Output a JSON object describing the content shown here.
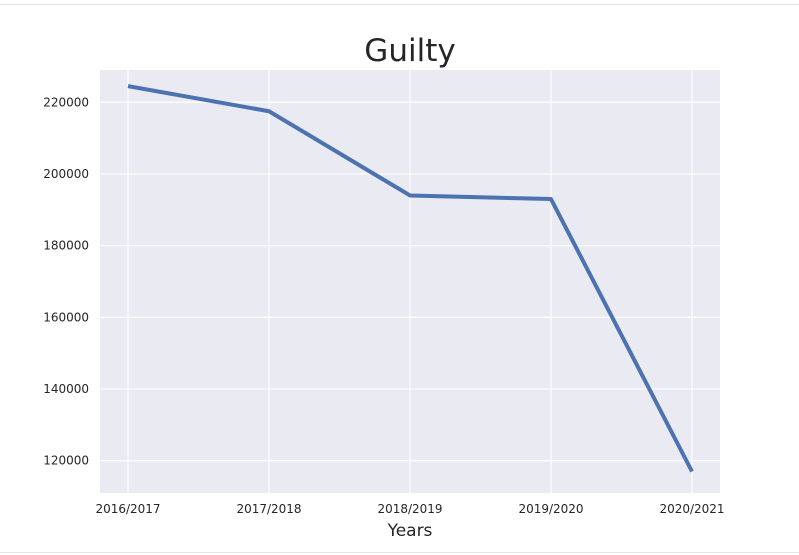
{
  "chart_data": {
    "type": "line",
    "title": "Guilty",
    "xlabel": "Years",
    "ylabel": "",
    "categories": [
      "2016/2017",
      "2017/2018",
      "2018/2019",
      "2019/2020",
      "2020/2021"
    ],
    "series": [
      {
        "values": [
          224500,
          217500,
          194000,
          193000,
          117000
        ]
      }
    ],
    "ylim": [
      111000,
      229000
    ],
    "yticks": [
      "120000",
      "140000",
      "160000",
      "180000",
      "200000",
      "220000"
    ],
    "grid": true,
    "legend": "none",
    "colors": {
      "line": "#4c72b0",
      "plot_background": "#eaeaf2",
      "grid": "#ffffff",
      "text": "#262626"
    }
  }
}
